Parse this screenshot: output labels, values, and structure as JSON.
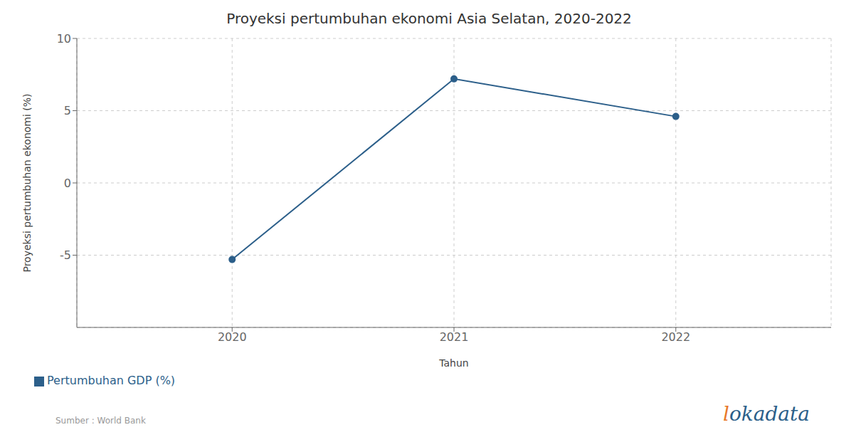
{
  "chart_data": {
    "type": "line",
    "title": "Proyeksi pertumbuhan ekonomi Asia Selatan, 2020-2022",
    "x": [
      2020,
      2021,
      2022
    ],
    "series": [
      {
        "name": "Pertumbuhan GDP (%)",
        "color": "#2c5f8a",
        "values": [
          -5.3,
          7.2,
          4.6
        ],
        "marker": "circle",
        "line_style": "solid"
      }
    ],
    "xlabel": "Tahun",
    "ylabel": "Proyeksi pertumbuhan ekonomi (%)",
    "xlim": [
      2019.3,
      2022.7
    ],
    "xticks": [
      2020,
      2021,
      2022
    ],
    "ylim": [
      -10,
      10
    ],
    "yticks": [
      -5,
      0,
      5,
      10
    ],
    "grid": true,
    "legend": "lower left",
    "annotations": [
      "Sumber : World Bank",
      "lokadata"
    ]
  }
}
